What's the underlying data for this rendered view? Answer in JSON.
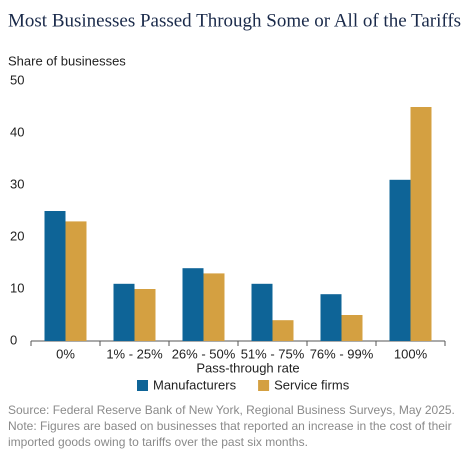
{
  "chart_data": {
    "type": "bar",
    "title": "Most Businesses Passed Through Some or All of the Tariffs",
    "y_label": "Share of businesses",
    "x_label": "Pass-through rate",
    "categories": [
      "0%",
      "1% - 25%",
      "26% - 50%",
      "51% - 75%",
      "76% - 99%",
      "100%"
    ],
    "series": [
      {
        "name": "Manufacturers",
        "color": "#0e6497",
        "values": [
          25,
          11,
          14,
          11,
          9,
          31
        ]
      },
      {
        "name": "Service firms",
        "color": "#d4a041",
        "values": [
          23,
          10,
          13,
          4,
          5,
          45
        ]
      }
    ],
    "ylim": [
      0,
      50
    ],
    "yticks": [
      0,
      10,
      20,
      30,
      40,
      50
    ],
    "grid": false,
    "source": "Source: Federal Reserve Bank of New York, Regional Business Surveys, May 2025.",
    "note": "Note: Figures are based on businesses that reported an increase in the cost of their imported goods owing to tariffs over the past six months."
  }
}
